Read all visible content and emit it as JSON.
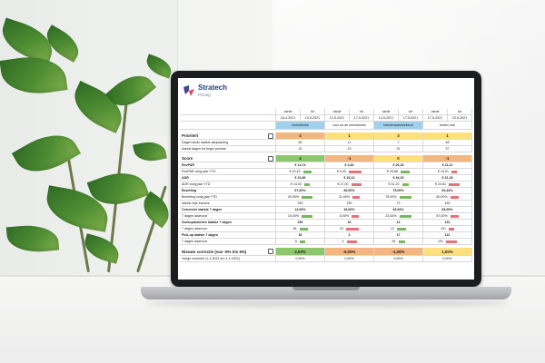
{
  "app": {
    "logo_title": "Stratech",
    "logo_subtitle": "Pricing"
  },
  "colors": {
    "blue_header": "#9fd0ec",
    "green": "#8cc76b",
    "orange": "#f4b67f",
    "yellow": "#ffe07a",
    "bar_green": "#7bb661",
    "bar_red": "#e0737d"
  },
  "periods": [
    {
      "from_label": "vanaf",
      "to_label": "tot",
      "from": "18-4-2021",
      "to": "10-5-2021",
      "name": "mehobenbe"
    },
    {
      "from_label": "vanaf",
      "to_label": "tot",
      "from": "12-5-2021",
      "to": "17-5-2021",
      "name": "voor na de mehobenbe"
    },
    {
      "from_label": "vanaf",
      "to_label": "tot",
      "from": "13-5-2021",
      "to": "17-5-2021",
      "name": "hemelvaartweekend"
    },
    {
      "from_label": "vanaf",
      "to_label": "tot",
      "from": "17-5-2021",
      "to": "23-5-2021",
      "name": "buiten hoti"
    }
  ],
  "prioriteit": {
    "label": "Prioriteit",
    "values": [
      "4",
      "1",
      "3",
      "1"
    ],
    "rows": [
      {
        "label": "Dagen sinds laatste aanpassing",
        "values": [
          "65",
          "12",
          "7",
          "48"
        ]
      },
      {
        "label": "Aantal dagen tot begin periode",
        "values": [
          "10",
          "23",
          "31",
          "37"
        ]
      }
    ]
  },
  "score": {
    "label": "Score",
    "values": [
      "4",
      "-1",
      "0",
      "-1"
    ],
    "rows": [
      {
        "label": "RevPAR",
        "values": [
          "€ 14,74",
          "€ 4,84",
          "€ 26,18",
          "€ 11,11"
        ],
        "bold": true
      },
      {
        "label": "RevPAR vorig jaar YTD",
        "values": [
          "€ 20,43",
          "€ 5,40",
          "€ 25,86",
          "€ 15,01"
        ]
      },
      {
        "label": "ADR",
        "values": [
          "€ 22,80",
          "€ 16,12",
          "€ 34,15",
          "€ 21,18"
        ],
        "bold": true
      },
      {
        "label": "ADR vorig jaar YTD",
        "values": [
          "€ 14,00",
          "€ 17,00",
          "€ 31,20",
          "€ 20,81"
        ]
      },
      {
        "label": "Bezetting",
        "values": [
          "67,00%",
          "30,00%",
          "79,00%",
          "52,44%"
        ],
        "bold": true
      },
      {
        "label": "Bezetting vorig jaar YTD",
        "values": [
          "49,05%",
          "31,00%",
          "75,00%",
          "60,00%"
        ]
      },
      {
        "label": "Aantal vrije kamers",
        "values": [
          "330",
          "230",
          "73",
          "169"
        ]
      },
      {
        "label": "Conversie laatste 7 dagen",
        "values": [
          "12,00%",
          "16,00%",
          "33,54%",
          "83,00%"
        ],
        "bold": true
      },
      {
        "label": "7 dagen daarvoor",
        "values": [
          "15,00%",
          "8,00%",
          "23,53%",
          "87,00%"
        ]
      },
      {
        "label": "Zoekopdrachten laatste 7 dagen",
        "values": [
          "230",
          "16",
          "14",
          "131"
        ],
        "bold": true
      },
      {
        "label": "7 dagen daarvoor",
        "values": [
          "84",
          "20",
          "21",
          "101"
        ]
      },
      {
        "label": "Pick-up laatste 7 dagen",
        "values": [
          "30",
          "3",
          "17",
          "112"
        ],
        "bold": true
      },
      {
        "label": "7 dagen daarvoor",
        "values": [
          "6",
          "4",
          "54",
          "101"
        ]
      }
    ]
  },
  "nieuwe_correctie": {
    "label": "Nieuwe correctie (van -5% t/m 5%)",
    "values": [
      "4,00%",
      "-5,00%",
      "-1,00%",
      "1,00%"
    ]
  },
  "footer": {
    "label": "Vorige correctie (1-1-2021 t/m 1-1-2021)",
    "values": [
      "0,00%",
      "0,00%",
      "0,00%",
      "0,00%"
    ]
  }
}
